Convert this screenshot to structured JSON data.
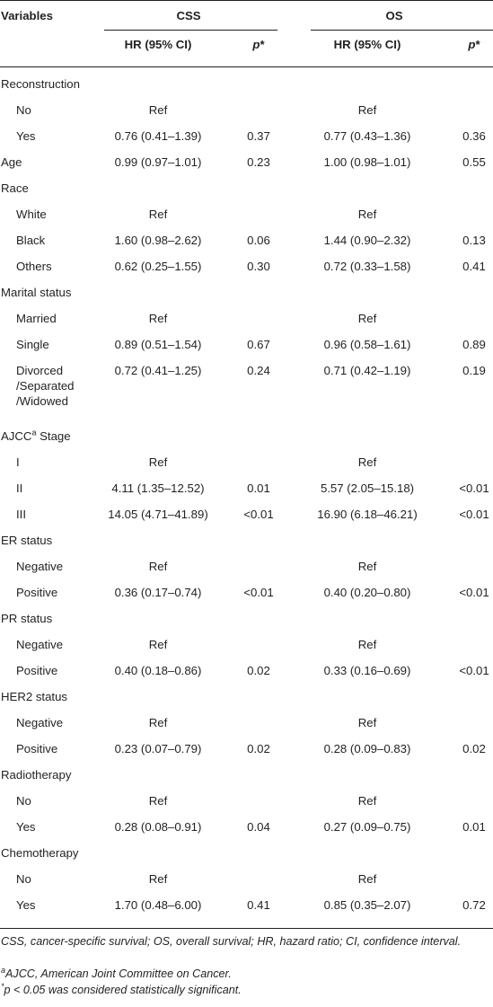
{
  "header": {
    "variables": "Variables",
    "css": "CSS",
    "os": "OS",
    "hr": "HR (95% CI)",
    "p": "p",
    "p_star": "*"
  },
  "rows": [
    {
      "label": "Reconstruction",
      "indent": false
    },
    {
      "label": "No",
      "indent": true,
      "css_hr": "Ref",
      "css_p": "",
      "os_hr": "Ref",
      "os_p": ""
    },
    {
      "label": "Yes",
      "indent": true,
      "css_hr": "0.76 (0.41–1.39)",
      "css_p": "0.37",
      "os_hr": "0.77 (0.43–1.36)",
      "os_p": "0.36"
    },
    {
      "label": "Age",
      "indent": false,
      "css_hr": "0.99 (0.97–1.01)",
      "css_p": "0.23",
      "os_hr": "1.00 (0.98–1.01)",
      "os_p": "0.55"
    },
    {
      "label": "Race",
      "indent": false
    },
    {
      "label": "White",
      "indent": true,
      "css_hr": "Ref",
      "css_p": "",
      "os_hr": "Ref",
      "os_p": ""
    },
    {
      "label": "Black",
      "indent": true,
      "css_hr": "1.60 (0.98–2.62)",
      "css_p": "0.06",
      "os_hr": "1.44 (0.90–2.32)",
      "os_p": "0.13"
    },
    {
      "label": "Others",
      "indent": true,
      "css_hr": "0.62 (0.25–1.55)",
      "css_p": "0.30",
      "os_hr": "0.72 (0.33–1.58)",
      "os_p": "0.41"
    },
    {
      "label": "Marital status",
      "indent": false
    },
    {
      "label": "Married",
      "indent": true,
      "css_hr": "Ref",
      "css_p": "",
      "os_hr": "Ref",
      "os_p": ""
    },
    {
      "label": "Single",
      "indent": true,
      "css_hr": "0.89 (0.51–1.54)",
      "css_p": "0.67",
      "os_hr": "0.96 (0.58–1.61)",
      "os_p": "0.89"
    },
    {
      "label": "Divorced",
      "label2": "/Separated",
      "label3": "/Widowed",
      "indent": true,
      "css_hr": "0.72 (0.41–1.25)",
      "css_p": "0.24",
      "os_hr": "0.71 (0.42–1.19)",
      "os_p": "0.19"
    },
    {
      "label": "AJCC",
      "label_sup": "a",
      "label_suffix": " Stage",
      "indent": false
    },
    {
      "label": "I",
      "indent": true,
      "css_hr": "Ref",
      "css_p": "",
      "os_hr": "Ref",
      "os_p": ""
    },
    {
      "label": "II",
      "indent": true,
      "css_hr": "4.11 (1.35–12.52)",
      "css_p": "0.01",
      "os_hr": "5.57 (2.05–15.18)",
      "os_p": "<0.01"
    },
    {
      "label": "III",
      "indent": true,
      "css_hr": "14.05 (4.71–41.89)",
      "css_p": "<0.01",
      "os_hr": "16.90 (6.18–46.21)",
      "os_p": "<0.01"
    },
    {
      "label": "ER status",
      "indent": false
    },
    {
      "label": "Negative",
      "indent": true,
      "css_hr": "Ref",
      "css_p": "",
      "os_hr": "Ref",
      "os_p": ""
    },
    {
      "label": "Positive",
      "indent": true,
      "css_hr": "0.36 (0.17–0.74)",
      "css_p": "<0.01",
      "os_hr": "0.40 (0.20–0.80)",
      "os_p": "<0.01"
    },
    {
      "label": "PR status",
      "indent": false
    },
    {
      "label": "Negative",
      "indent": true,
      "css_hr": "Ref",
      "css_p": "",
      "os_hr": "Ref",
      "os_p": ""
    },
    {
      "label": "Positive",
      "indent": true,
      "css_hr": "0.40 (0.18–0.86)",
      "css_p": "0.02",
      "os_hr": "0.33 (0.16–0.69)",
      "os_p": "<0.01"
    },
    {
      "label": "HER2 status",
      "indent": false
    },
    {
      "label": "Negative",
      "indent": true,
      "css_hr": "Ref",
      "css_p": "",
      "os_hr": "Ref",
      "os_p": ""
    },
    {
      "label": "Positive",
      "indent": true,
      "css_hr": "0.23 (0.07–0.79)",
      "css_p": "0.02",
      "os_hr": "0.28 (0.09–0.83)",
      "os_p": "0.02"
    },
    {
      "label": "Radiotherapy",
      "indent": false
    },
    {
      "label": "No",
      "indent": true,
      "css_hr": "Ref",
      "css_p": "",
      "os_hr": "Ref",
      "os_p": ""
    },
    {
      "label": "Yes",
      "indent": true,
      "css_hr": "0.28 (0.08–0.91)",
      "css_p": "0.04",
      "os_hr": "0.27 (0.09–0.75)",
      "os_p": "0.01"
    },
    {
      "label": "Chemotherapy",
      "indent": false
    },
    {
      "label": "No",
      "indent": true,
      "css_hr": "Ref",
      "css_p": "",
      "os_hr": "Ref",
      "os_p": ""
    },
    {
      "label": "Yes",
      "indent": true,
      "css_hr": "1.70 (0.48–6.00)",
      "css_p": "0.41",
      "os_hr": "0.85 (0.35–2.07)",
      "os_p": "0.72"
    }
  ],
  "footnotes": {
    "abbrev": "CSS, cancer-specific survival; OS, overall survival; HR, hazard ratio; CI, confidence interval.",
    "a_mark": "a",
    "a_text": "AJCC, American Joint Committee on Cancer.",
    "star_mark": "*",
    "star_text": "p < 0.05 was considered statistically significant."
  }
}
